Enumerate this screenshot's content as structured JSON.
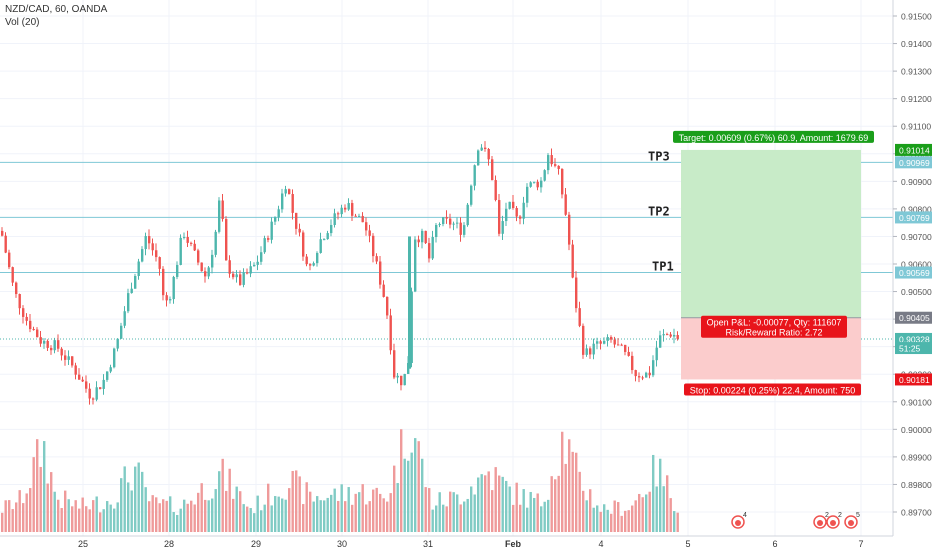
{
  "header": {
    "symbol": "NZD/CAD, 60, OANDA",
    "indicator": "Vol (20)"
  },
  "colors": {
    "up": "#4db6ac",
    "down": "#ef5350",
    "volume_up": "#80cbc4",
    "volume_down": "#ef9a9a",
    "level": "#7fc8d6",
    "profit_zone": "#c8ebc8",
    "loss_zone": "#fbcccc",
    "target_badge": "#1a9e1a",
    "stop_badge": "#e8141b"
  },
  "chart_data": {
    "type": "candlestick",
    "ylim": [
      0.8965,
      0.9161
    ],
    "y_ticks": [
      "0.91500",
      "0.91400",
      "0.91300",
      "0.91200",
      "0.91100",
      "0.91000",
      "0.90900",
      "0.90800",
      "0.90700",
      "0.90600",
      "0.90500",
      "0.90400",
      "0.90300",
      "0.90200",
      "0.90100",
      "0.90000",
      "0.89900",
      "0.89800",
      "0.89700"
    ],
    "x_ticks": [
      "25",
      "28",
      "29",
      "30",
      "31",
      "Feb",
      "4",
      "5",
      "6",
      "7"
    ],
    "price_labels": [
      {
        "text": "0.91014",
        "value": 0.91014,
        "color": "#1a9e1a"
      },
      {
        "text": "0.90969",
        "value": 0.90969,
        "color": "#7fc8d6"
      },
      {
        "text": "0.90769",
        "value": 0.90769,
        "color": "#7fc8d6"
      },
      {
        "text": "0.90569",
        "value": 0.90569,
        "color": "#7fc8d6"
      },
      {
        "text": "0.90405",
        "value": 0.90405,
        "color": "#787b86"
      },
      {
        "text": "0.90328",
        "value": 0.90328,
        "color": "#4db6ac"
      },
      {
        "text": "51:25",
        "value": 0.90295,
        "color": "#4db6ac"
      },
      {
        "text": "0.90181",
        "value": 0.90181,
        "color": "#e8141b"
      }
    ],
    "levels": [
      {
        "name": "TP3",
        "value": 0.90969
      },
      {
        "name": "TP2",
        "value": 0.90769
      },
      {
        "name": "TP1",
        "value": 0.90569
      }
    ],
    "last_price": 0.90328,
    "position": {
      "entry": 0.90405,
      "target": 0.91014,
      "stop": 0.90181,
      "target_text": "Target: 0.00609 (0.67%) 60.9, Amount: 1679.69",
      "stop_text": "Stop: 0.00224 (0.25%) 22.4, Amount: 750",
      "pnl_text": "Open P&L: -0.00077, Qty: 111607",
      "rr_text": "Risk/Reward Ratio: 2.72"
    },
    "price_path": [
      [
        0.9072,
        0
      ],
      [
        0.905,
        13
      ],
      [
        0.904,
        25
      ],
      [
        0.9032,
        40
      ],
      [
        0.903,
        56
      ],
      [
        0.9022,
        73
      ],
      [
        0.9012,
        90
      ],
      [
        0.9018,
        103
      ],
      [
        0.903,
        115
      ],
      [
        0.905,
        128
      ],
      [
        0.907,
        145
      ],
      [
        0.906,
        158
      ],
      [
        0.9045,
        163
      ],
      [
        0.905,
        170
      ],
      [
        0.9072,
        182
      ],
      [
        0.9062,
        195
      ],
      [
        0.9055,
        205
      ],
      [
        0.907,
        214
      ],
      [
        0.9085,
        219
      ],
      [
        0.906,
        225
      ],
      [
        0.9053,
        238
      ],
      [
        0.906,
        255
      ],
      [
        0.9078,
        275
      ],
      [
        0.909,
        285
      ],
      [
        0.9078,
        292
      ],
      [
        0.9068,
        300
      ],
      [
        0.9057,
        307
      ],
      [
        0.9068,
        318
      ],
      [
        0.9075,
        330
      ],
      [
        0.9082,
        345
      ],
      [
        0.9077,
        356
      ],
      [
        0.9075,
        363
      ],
      [
        0.906,
        375
      ],
      [
        0.9045,
        385
      ],
      [
        0.902,
        393
      ],
      [
        0.9017,
        402
      ],
      [
        0.9025,
        407
      ],
      [
        0.907,
        413
      ],
      [
        0.907,
        422
      ],
      [
        0.9062,
        428
      ],
      [
        0.9075,
        436
      ],
      [
        0.9075,
        450
      ],
      [
        0.9072,
        462
      ],
      [
        0.909,
        470
      ],
      [
        0.9105,
        478
      ],
      [
        0.9097,
        488
      ],
      [
        0.9088,
        493
      ],
      [
        0.907,
        498
      ],
      [
        0.9082,
        506
      ],
      [
        0.9075,
        517
      ],
      [
        0.9088,
        525
      ],
      [
        0.909,
        540
      ],
      [
        0.91,
        547
      ],
      [
        0.9092,
        558
      ],
      [
        0.9075,
        566
      ],
      [
        0.9055,
        571
      ],
      [
        0.904,
        577
      ],
      [
        0.9027,
        583
      ],
      [
        0.903,
        593
      ],
      [
        0.9032,
        610
      ],
      [
        0.9028,
        622
      ],
      [
        0.902,
        635
      ],
      [
        0.902,
        648
      ],
      [
        0.9033,
        658
      ],
      [
        0.9035,
        670
      ],
      [
        0.90328,
        678
      ]
    ],
    "volume_path": [
      [
        0.2,
        0
      ],
      [
        0.28,
        20
      ],
      [
        0.75,
        42
      ],
      [
        0.3,
        55
      ],
      [
        0.22,
        80
      ],
      [
        0.28,
        110
      ],
      [
        0.55,
        133
      ],
      [
        0.25,
        150
      ],
      [
        0.22,
        180
      ],
      [
        0.5,
        220
      ],
      [
        0.2,
        250
      ],
      [
        0.45,
        287
      ],
      [
        0.3,
        310
      ],
      [
        0.35,
        360
      ],
      [
        0.3,
        385
      ],
      [
        0.55,
        395
      ],
      [
        1.0,
        409
      ],
      [
        0.25,
        430
      ],
      [
        0.3,
        455
      ],
      [
        0.52,
        488
      ],
      [
        0.35,
        510
      ],
      [
        0.25,
        540
      ],
      [
        0.82,
        562
      ],
      [
        0.45,
        578
      ],
      [
        0.2,
        600
      ],
      [
        0.22,
        630
      ],
      [
        0.55,
        656
      ],
      [
        0.2,
        678
      ]
    ]
  },
  "events": [
    {
      "name": "event-1",
      "x": 738,
      "label": "4"
    },
    {
      "name": "event-2",
      "x": 820,
      "label": "2"
    },
    {
      "name": "event-3",
      "x": 833,
      "label": "2"
    },
    {
      "name": "event-4",
      "x": 851,
      "label": "5"
    }
  ]
}
